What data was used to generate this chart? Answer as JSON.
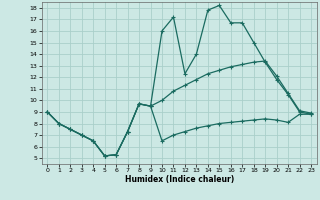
{
  "xlabel": "Humidex (Indice chaleur)",
  "bg_color": "#cce8e4",
  "grid_color": "#aacfca",
  "line_color": "#1a6b60",
  "xlim": [
    -0.5,
    23.5
  ],
  "ylim": [
    4.5,
    18.5
  ],
  "yticks": [
    5,
    6,
    7,
    8,
    9,
    10,
    11,
    12,
    13,
    14,
    15,
    16,
    17,
    18
  ],
  "xticks": [
    0,
    1,
    2,
    3,
    4,
    5,
    6,
    7,
    8,
    9,
    10,
    11,
    12,
    13,
    14,
    15,
    16,
    17,
    18,
    19,
    20,
    21,
    22,
    23
  ],
  "line1_x": [
    0,
    1,
    2,
    3,
    4,
    5,
    6,
    7,
    8,
    9,
    10,
    11,
    12,
    13,
    14,
    15,
    16,
    17,
    18,
    19,
    20,
    21,
    22,
    23
  ],
  "line1_y": [
    9.0,
    8.0,
    7.5,
    7.0,
    6.5,
    5.2,
    5.3,
    7.3,
    9.7,
    9.5,
    16.0,
    17.2,
    12.3,
    14.0,
    17.8,
    18.2,
    16.7,
    16.7,
    15.0,
    13.3,
    11.8,
    10.5,
    9.0,
    8.8
  ],
  "line2_x": [
    0,
    1,
    2,
    3,
    4,
    5,
    6,
    7,
    8,
    9,
    10,
    11,
    12,
    13,
    14,
    15,
    16,
    17,
    18,
    19,
    20,
    21,
    22,
    23
  ],
  "line2_y": [
    9.0,
    8.0,
    7.5,
    7.0,
    6.5,
    5.2,
    5.3,
    7.3,
    9.7,
    9.5,
    10.0,
    10.8,
    11.3,
    11.8,
    12.3,
    12.6,
    12.9,
    13.1,
    13.3,
    13.4,
    12.1,
    10.6,
    9.1,
    8.9
  ],
  "line3_x": [
    0,
    1,
    2,
    3,
    4,
    5,
    6,
    7,
    8,
    9,
    10,
    11,
    12,
    13,
    14,
    15,
    16,
    17,
    18,
    19,
    20,
    21,
    22,
    23
  ],
  "line3_y": [
    9.0,
    8.0,
    7.5,
    7.0,
    6.5,
    5.2,
    5.3,
    7.3,
    9.7,
    9.5,
    6.5,
    7.0,
    7.3,
    7.6,
    7.8,
    8.0,
    8.1,
    8.2,
    8.3,
    8.4,
    8.3,
    8.1,
    8.8,
    8.8
  ]
}
